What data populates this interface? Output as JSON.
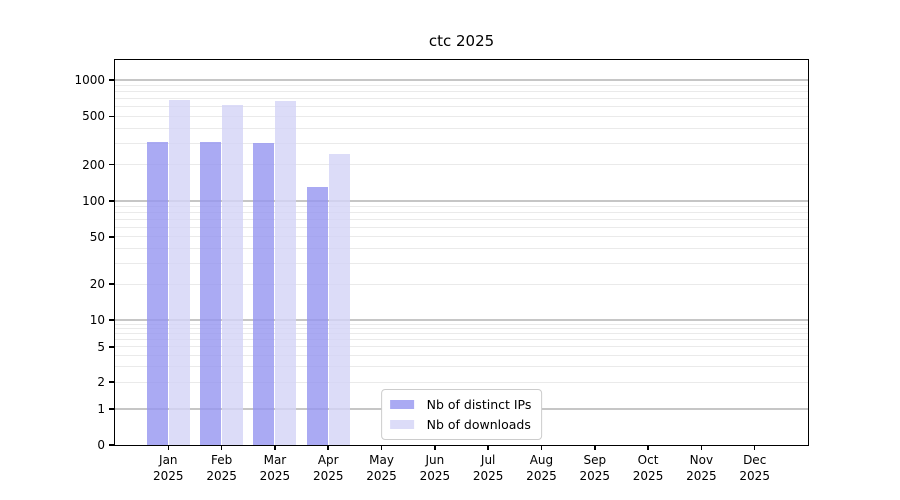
{
  "chart_data": {
    "type": "bar",
    "title": "ctc 2025",
    "categories": [
      "Jan 2025",
      "Feb 2025",
      "Mar 2025",
      "Apr 2025",
      "May 2025",
      "Jun 2025",
      "Jul 2025",
      "Aug 2025",
      "Sep 2025",
      "Oct 2025",
      "Nov 2025",
      "Dec 2025"
    ],
    "series": [
      {
        "name": "Nb of distinct IPs",
        "color": "#9595f0",
        "values": [
          305,
          310,
          300,
          130,
          0,
          0,
          0,
          0,
          0,
          0,
          0,
          0
        ]
      },
      {
        "name": "Nb of downloads",
        "color": "#d3d3f6",
        "values": [
          690,
          620,
          670,
          245,
          0,
          0,
          0,
          0,
          0,
          0,
          0,
          0
        ]
      }
    ],
    "xlabel": "",
    "ylabel": "",
    "yscale": "symlog",
    "ylim": [
      0,
      1460
    ],
    "y_ticks": [
      0,
      1,
      2,
      5,
      10,
      20,
      50,
      100,
      200,
      500,
      1000
    ],
    "grid": true,
    "legend_position": "lower center",
    "style": {
      "bar_opacity": 0.8,
      "grid_major_color": "#c6c6c6",
      "grid_minor_color": "#eaeaea",
      "spine_color": "#000000",
      "text_color": "#000000",
      "background": "#ffffff"
    }
  }
}
